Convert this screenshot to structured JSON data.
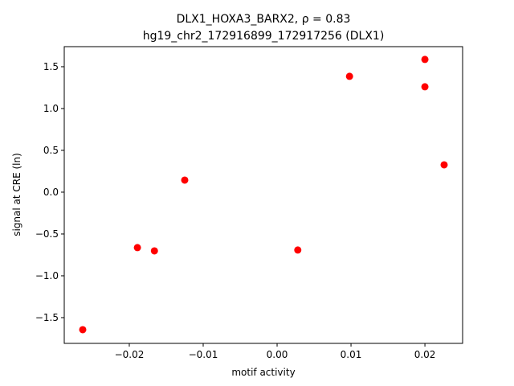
{
  "chart_data": {
    "type": "scatter",
    "title": "DLX1_HOXA3_BARX2, ρ = 0.83",
    "subtitle": "hg19_chr2_172916899_172917256 (DLX1)",
    "x_label": "motif activity",
    "y_label": "signal at CRE (ln)",
    "color": "#ff0000",
    "x": [
      -0.0263,
      -0.0189,
      -0.0166,
      -0.0125,
      0.0028,
      0.0098,
      0.02,
      0.02,
      0.0226
    ],
    "values": [
      -1.644,
      -0.663,
      -0.702,
      0.144,
      -0.692,
      1.385,
      1.587,
      1.26,
      0.327
    ],
    "xlim": [
      -0.0288,
      0.0251
    ],
    "ylim": [
      -1.808,
      1.74
    ],
    "xticks": [
      {
        "value": -0.02,
        "label": "−0.02"
      },
      {
        "value": -0.01,
        "label": "−0.01"
      },
      {
        "value": 0,
        "label": "0.00"
      },
      {
        "value": 0.01,
        "label": "0.01"
      },
      {
        "value": 0.02,
        "label": "0.02"
      }
    ],
    "yticks": [
      {
        "value": -1.5,
        "label": "−1.5"
      },
      {
        "value": -1,
        "label": "−1.0"
      },
      {
        "value": -0.5,
        "label": "−0.5"
      },
      {
        "value": 0,
        "label": "0.0"
      },
      {
        "value": 0.5,
        "label": "0.5"
      },
      {
        "value": 1,
        "label": "1.0"
      },
      {
        "value": 1.5,
        "label": "1.5"
      }
    ],
    "grid": false
  }
}
